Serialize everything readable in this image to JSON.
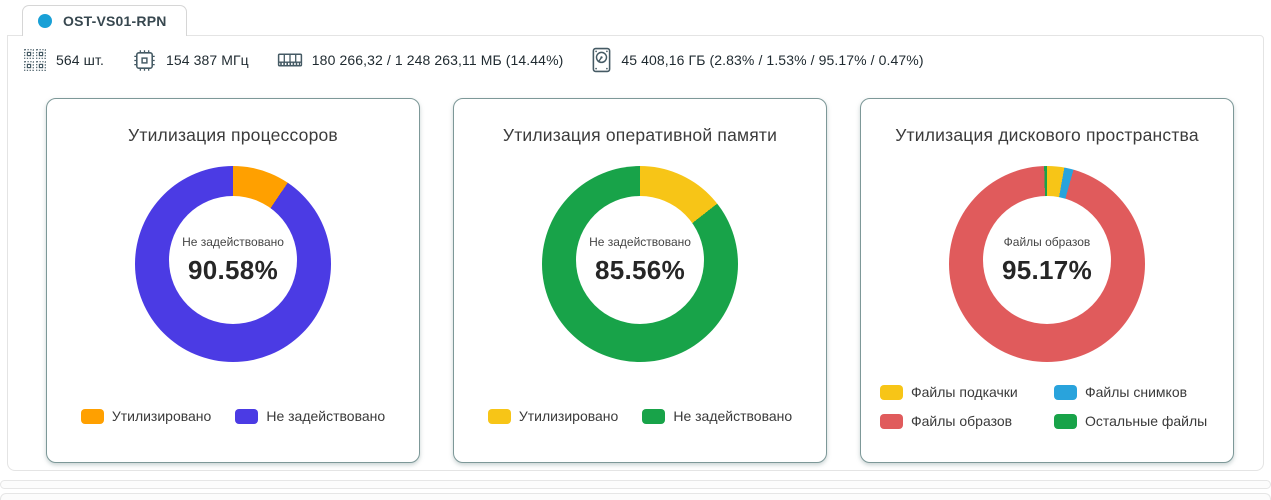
{
  "tab": {
    "label": "OST-VS01-RPN",
    "dot_color": "#19a0d6"
  },
  "stats": {
    "cpu_count": {
      "icon": "chips-grid-icon",
      "text": "564 шт."
    },
    "cpu_freq": {
      "icon": "cpu-icon",
      "text": "154 387 МГц"
    },
    "memory": {
      "icon": "ram-icon",
      "text": "180 266,32 / 1 248 263,11 МБ (14.44%)"
    },
    "disk": {
      "icon": "hdd-icon",
      "text": "45 408,16 ГБ (2.83% / 1.53% / 95.17% / 0.47%)"
    }
  },
  "chart_data": [
    {
      "type": "pie",
      "title": "Утилизация процессоров",
      "center_label": "Не задействовано",
      "center_value": "90.58%",
      "legend_position": "bottom",
      "slices": [
        {
          "label": "Утилизировано",
          "value": 9.42,
          "color": "#FFA000"
        },
        {
          "label": "Не задействовано",
          "value": 90.58,
          "color": "#4B3BE4"
        }
      ]
    },
    {
      "type": "pie",
      "title": "Утилизация оперативной памяти",
      "center_label": "Не задействовано",
      "center_value": "85.56%",
      "legend_position": "bottom",
      "slices": [
        {
          "label": "Утилизировано",
          "value": 14.44,
          "color": "#F7C517"
        },
        {
          "label": "Не задействовано",
          "value": 85.56,
          "color": "#18A349"
        }
      ]
    },
    {
      "type": "pie",
      "title": "Утилизация дискового пространства",
      "center_label": "Файлы образов",
      "center_value": "95.17%",
      "legend_position": "bottom",
      "slices": [
        {
          "label": "Файлы подкачки",
          "value": 2.83,
          "color": "#F7C517"
        },
        {
          "label": "Файлы снимков",
          "value": 1.53,
          "color": "#29A3DC"
        },
        {
          "label": "Файлы образов",
          "value": 95.17,
          "color": "#E05B5C"
        },
        {
          "label": "Остальные файлы",
          "value": 0.47,
          "color": "#18A349"
        }
      ]
    }
  ]
}
